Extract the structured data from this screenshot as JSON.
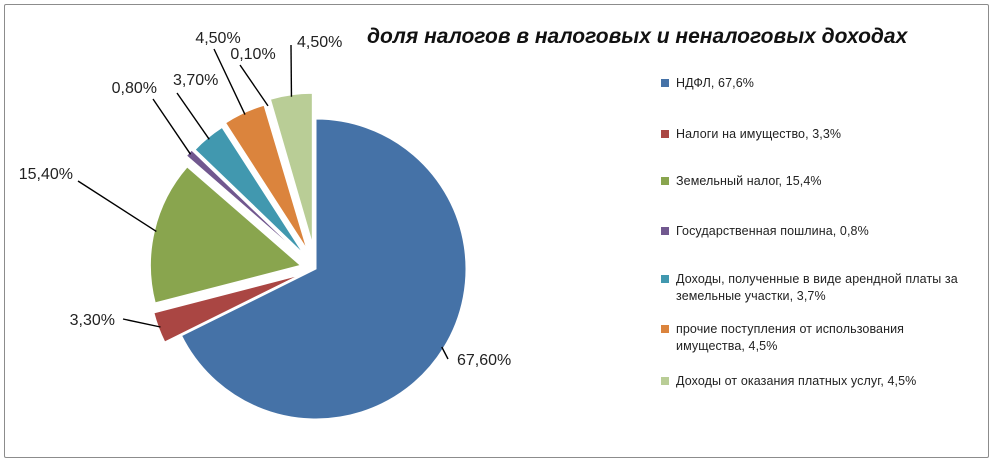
{
  "chart_data": {
    "type": "pie",
    "title": "доля налогов в налоговых и неналоговых доходах",
    "legend_position": "right",
    "exploded": true,
    "slices": [
      {
        "name": "НДФЛ, 67,6%",
        "value": 67.6,
        "label": "67,60%",
        "color": "#4572A7"
      },
      {
        "name": "Налоги на имущество, 3,3%",
        "value": 3.3,
        "label": "3,30%",
        "color": "#AA4643"
      },
      {
        "name": "Земельный налог, 15,4%",
        "value": 15.4,
        "label": "15,40%",
        "color": "#89A54E"
      },
      {
        "name": "Государственная пошлина, 0,8%",
        "value": 0.8,
        "label": "0,80%",
        "color": "#71588F"
      },
      {
        "name": "Доходы, полученные в виде арендной платы за земельные участки, 3,7%",
        "value": 3.7,
        "label": "3,70%",
        "color": "#4198AF"
      },
      {
        "name": "прочие поступления от использования имущества, 4,5%",
        "value": 4.5,
        "label": "4,50%",
        "color": "#DB843D"
      },
      {
        "name": "",
        "value": 0.1,
        "label": "0,10%",
        "color": "#93A9CF"
      },
      {
        "name": "Доходы от оказания платных услуг, 4,5%",
        "value": 4.5,
        "label": "4,50%",
        "color": "#B9CD96"
      }
    ]
  }
}
